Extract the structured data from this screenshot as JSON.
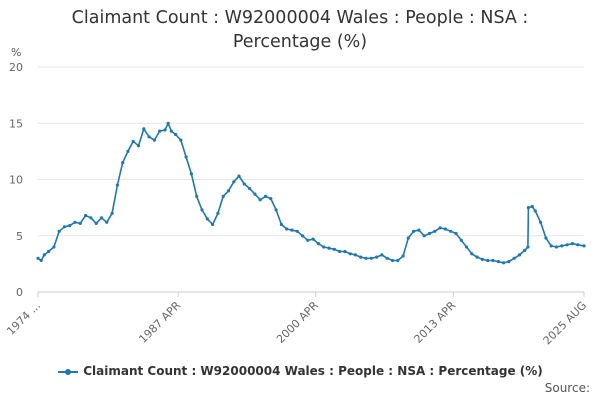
{
  "chart_data": {
    "type": "line",
    "title_line1": "Claimant Count : W92000004 Wales : People : NSA :",
    "title_line2": "Percentage (%)",
    "ylabel": "%",
    "ylim": [
      0,
      20
    ],
    "yticks": [
      0,
      5,
      10,
      15,
      20
    ],
    "x_tick_labels": [
      "1974 ...",
      "1987 APR",
      "2000 APR",
      "2013 APR",
      "2025 AUG"
    ],
    "x_tick_dates": [
      1974.0,
      1987.25,
      2000.25,
      2013.25,
      2025.6
    ],
    "xlim": [
      1974.0,
      2025.6
    ],
    "grid": "horizontal",
    "legend_position": "bottom",
    "color": "#1f77b4",
    "series": [
      {
        "name": "Claimant Count : W92000004 Wales : People : NSA : Percentage (%)",
        "points": [
          [
            1974.0,
            3.0
          ],
          [
            1974.3,
            2.8
          ],
          [
            1974.6,
            3.3
          ],
          [
            1975.0,
            3.6
          ],
          [
            1975.5,
            4.0
          ],
          [
            1976.0,
            5.4
          ],
          [
            1976.5,
            5.8
          ],
          [
            1977.0,
            5.9
          ],
          [
            1977.5,
            6.2
          ],
          [
            1978.0,
            6.1
          ],
          [
            1978.5,
            6.8
          ],
          [
            1979.0,
            6.6
          ],
          [
            1979.5,
            6.1
          ],
          [
            1980.0,
            6.6
          ],
          [
            1980.5,
            6.2
          ],
          [
            1981.0,
            7.0
          ],
          [
            1981.5,
            9.5
          ],
          [
            1982.0,
            11.5
          ],
          [
            1982.5,
            12.5
          ],
          [
            1983.0,
            13.4
          ],
          [
            1983.5,
            13.0
          ],
          [
            1984.0,
            14.5
          ],
          [
            1984.5,
            13.8
          ],
          [
            1985.0,
            13.5
          ],
          [
            1985.5,
            14.3
          ],
          [
            1986.0,
            14.4
          ],
          [
            1986.3,
            15.0
          ],
          [
            1986.6,
            14.3
          ],
          [
            1987.0,
            14.0
          ],
          [
            1987.5,
            13.5
          ],
          [
            1988.0,
            12.0
          ],
          [
            1988.5,
            10.5
          ],
          [
            1989.0,
            8.5
          ],
          [
            1989.5,
            7.3
          ],
          [
            1990.0,
            6.5
          ],
          [
            1990.5,
            6.0
          ],
          [
            1991.0,
            7.0
          ],
          [
            1991.5,
            8.5
          ],
          [
            1992.0,
            9.0
          ],
          [
            1992.5,
            9.8
          ],
          [
            1993.0,
            10.3
          ],
          [
            1993.5,
            9.6
          ],
          [
            1994.0,
            9.2
          ],
          [
            1994.5,
            8.7
          ],
          [
            1995.0,
            8.2
          ],
          [
            1995.5,
            8.5
          ],
          [
            1996.0,
            8.3
          ],
          [
            1996.5,
            7.3
          ],
          [
            1997.0,
            6.0
          ],
          [
            1997.5,
            5.6
          ],
          [
            1998.0,
            5.5
          ],
          [
            1998.5,
            5.4
          ],
          [
            1999.0,
            5.0
          ],
          [
            1999.5,
            4.6
          ],
          [
            2000.0,
            4.7
          ],
          [
            2000.5,
            4.3
          ],
          [
            2001.0,
            4.0
          ],
          [
            2001.5,
            3.9
          ],
          [
            2002.0,
            3.8
          ],
          [
            2002.5,
            3.6
          ],
          [
            2003.0,
            3.6
          ],
          [
            2003.5,
            3.4
          ],
          [
            2004.0,
            3.3
          ],
          [
            2004.5,
            3.1
          ],
          [
            2005.0,
            3.0
          ],
          [
            2005.5,
            3.0
          ],
          [
            2006.0,
            3.1
          ],
          [
            2006.5,
            3.3
          ],
          [
            2007.0,
            3.0
          ],
          [
            2007.5,
            2.8
          ],
          [
            2008.0,
            2.8
          ],
          [
            2008.5,
            3.2
          ],
          [
            2009.0,
            4.8
          ],
          [
            2009.5,
            5.4
          ],
          [
            2010.0,
            5.5
          ],
          [
            2010.5,
            5.0
          ],
          [
            2011.0,
            5.2
          ],
          [
            2011.5,
            5.4
          ],
          [
            2012.0,
            5.7
          ],
          [
            2012.5,
            5.6
          ],
          [
            2013.0,
            5.4
          ],
          [
            2013.5,
            5.2
          ],
          [
            2014.0,
            4.6
          ],
          [
            2014.5,
            4.0
          ],
          [
            2015.0,
            3.4
          ],
          [
            2015.5,
            3.1
          ],
          [
            2016.0,
            2.9
          ],
          [
            2016.5,
            2.8
          ],
          [
            2017.0,
            2.8
          ],
          [
            2017.5,
            2.7
          ],
          [
            2018.0,
            2.6
          ],
          [
            2018.5,
            2.7
          ],
          [
            2019.0,
            3.0
          ],
          [
            2019.5,
            3.3
          ],
          [
            2020.0,
            3.7
          ],
          [
            2020.3,
            4.0
          ],
          [
            2020.35,
            7.5
          ],
          [
            2020.7,
            7.6
          ],
          [
            2021.0,
            7.2
          ],
          [
            2021.5,
            6.2
          ],
          [
            2022.0,
            4.8
          ],
          [
            2022.5,
            4.1
          ],
          [
            2023.0,
            4.0
          ],
          [
            2023.5,
            4.1
          ],
          [
            2024.0,
            4.2
          ],
          [
            2024.5,
            4.3
          ],
          [
            2025.0,
            4.2
          ],
          [
            2025.6,
            4.1
          ]
        ]
      }
    ],
    "source_label": "Source:"
  }
}
